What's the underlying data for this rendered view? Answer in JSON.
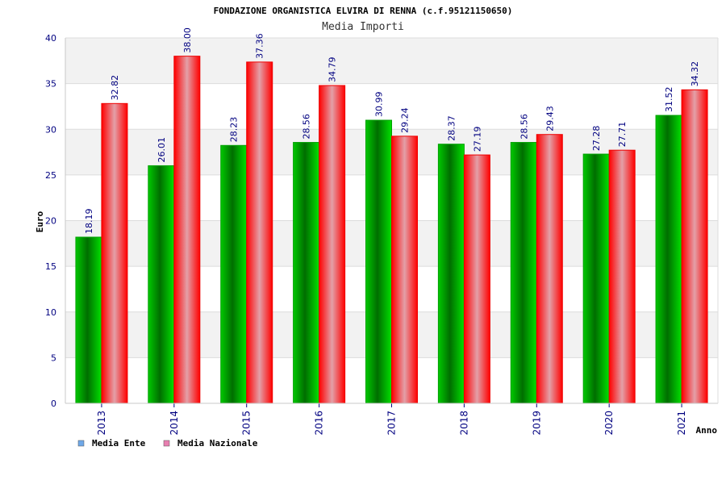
{
  "chart_data": {
    "type": "bar",
    "title": "FONDAZIONE ORGANISTICA ELVIRA DI RENNA (c.f.95121150650)",
    "subtitle": "Media Importi",
    "xlabel": "Anno",
    "ylabel": "Euro",
    "ylim": [
      0,
      40
    ],
    "yticks": [
      0,
      5,
      10,
      15,
      20,
      25,
      30,
      35,
      40
    ],
    "categories": [
      "2013",
      "2014",
      "2015",
      "2016",
      "2017",
      "2018",
      "2019",
      "2020",
      "2021"
    ],
    "series": [
      {
        "name": "Media Ente",
        "values": [
          18.19,
          26.01,
          28.23,
          28.56,
          30.99,
          28.37,
          28.56,
          27.28,
          31.52
        ],
        "labels": [
          "18.19",
          "26.01",
          "28.23",
          "28.56",
          "30.99",
          "28.37",
          "28.56",
          "27.28",
          "31.52"
        ],
        "color": "#00b000",
        "legend_color": "#6fa8e8"
      },
      {
        "name": "Media Nazionale",
        "values": [
          32.82,
          38.0,
          37.36,
          34.79,
          29.24,
          27.19,
          29.43,
          27.71,
          34.32
        ],
        "labels": [
          "32.82",
          "38.00",
          "37.36",
          "34.79",
          "29.24",
          "27.19",
          "29.43",
          "27.71",
          "34.32"
        ],
        "color": "#ff0000",
        "legend_color": "#e87fb0"
      }
    ],
    "grid": true,
    "legend": "bottom-left"
  }
}
